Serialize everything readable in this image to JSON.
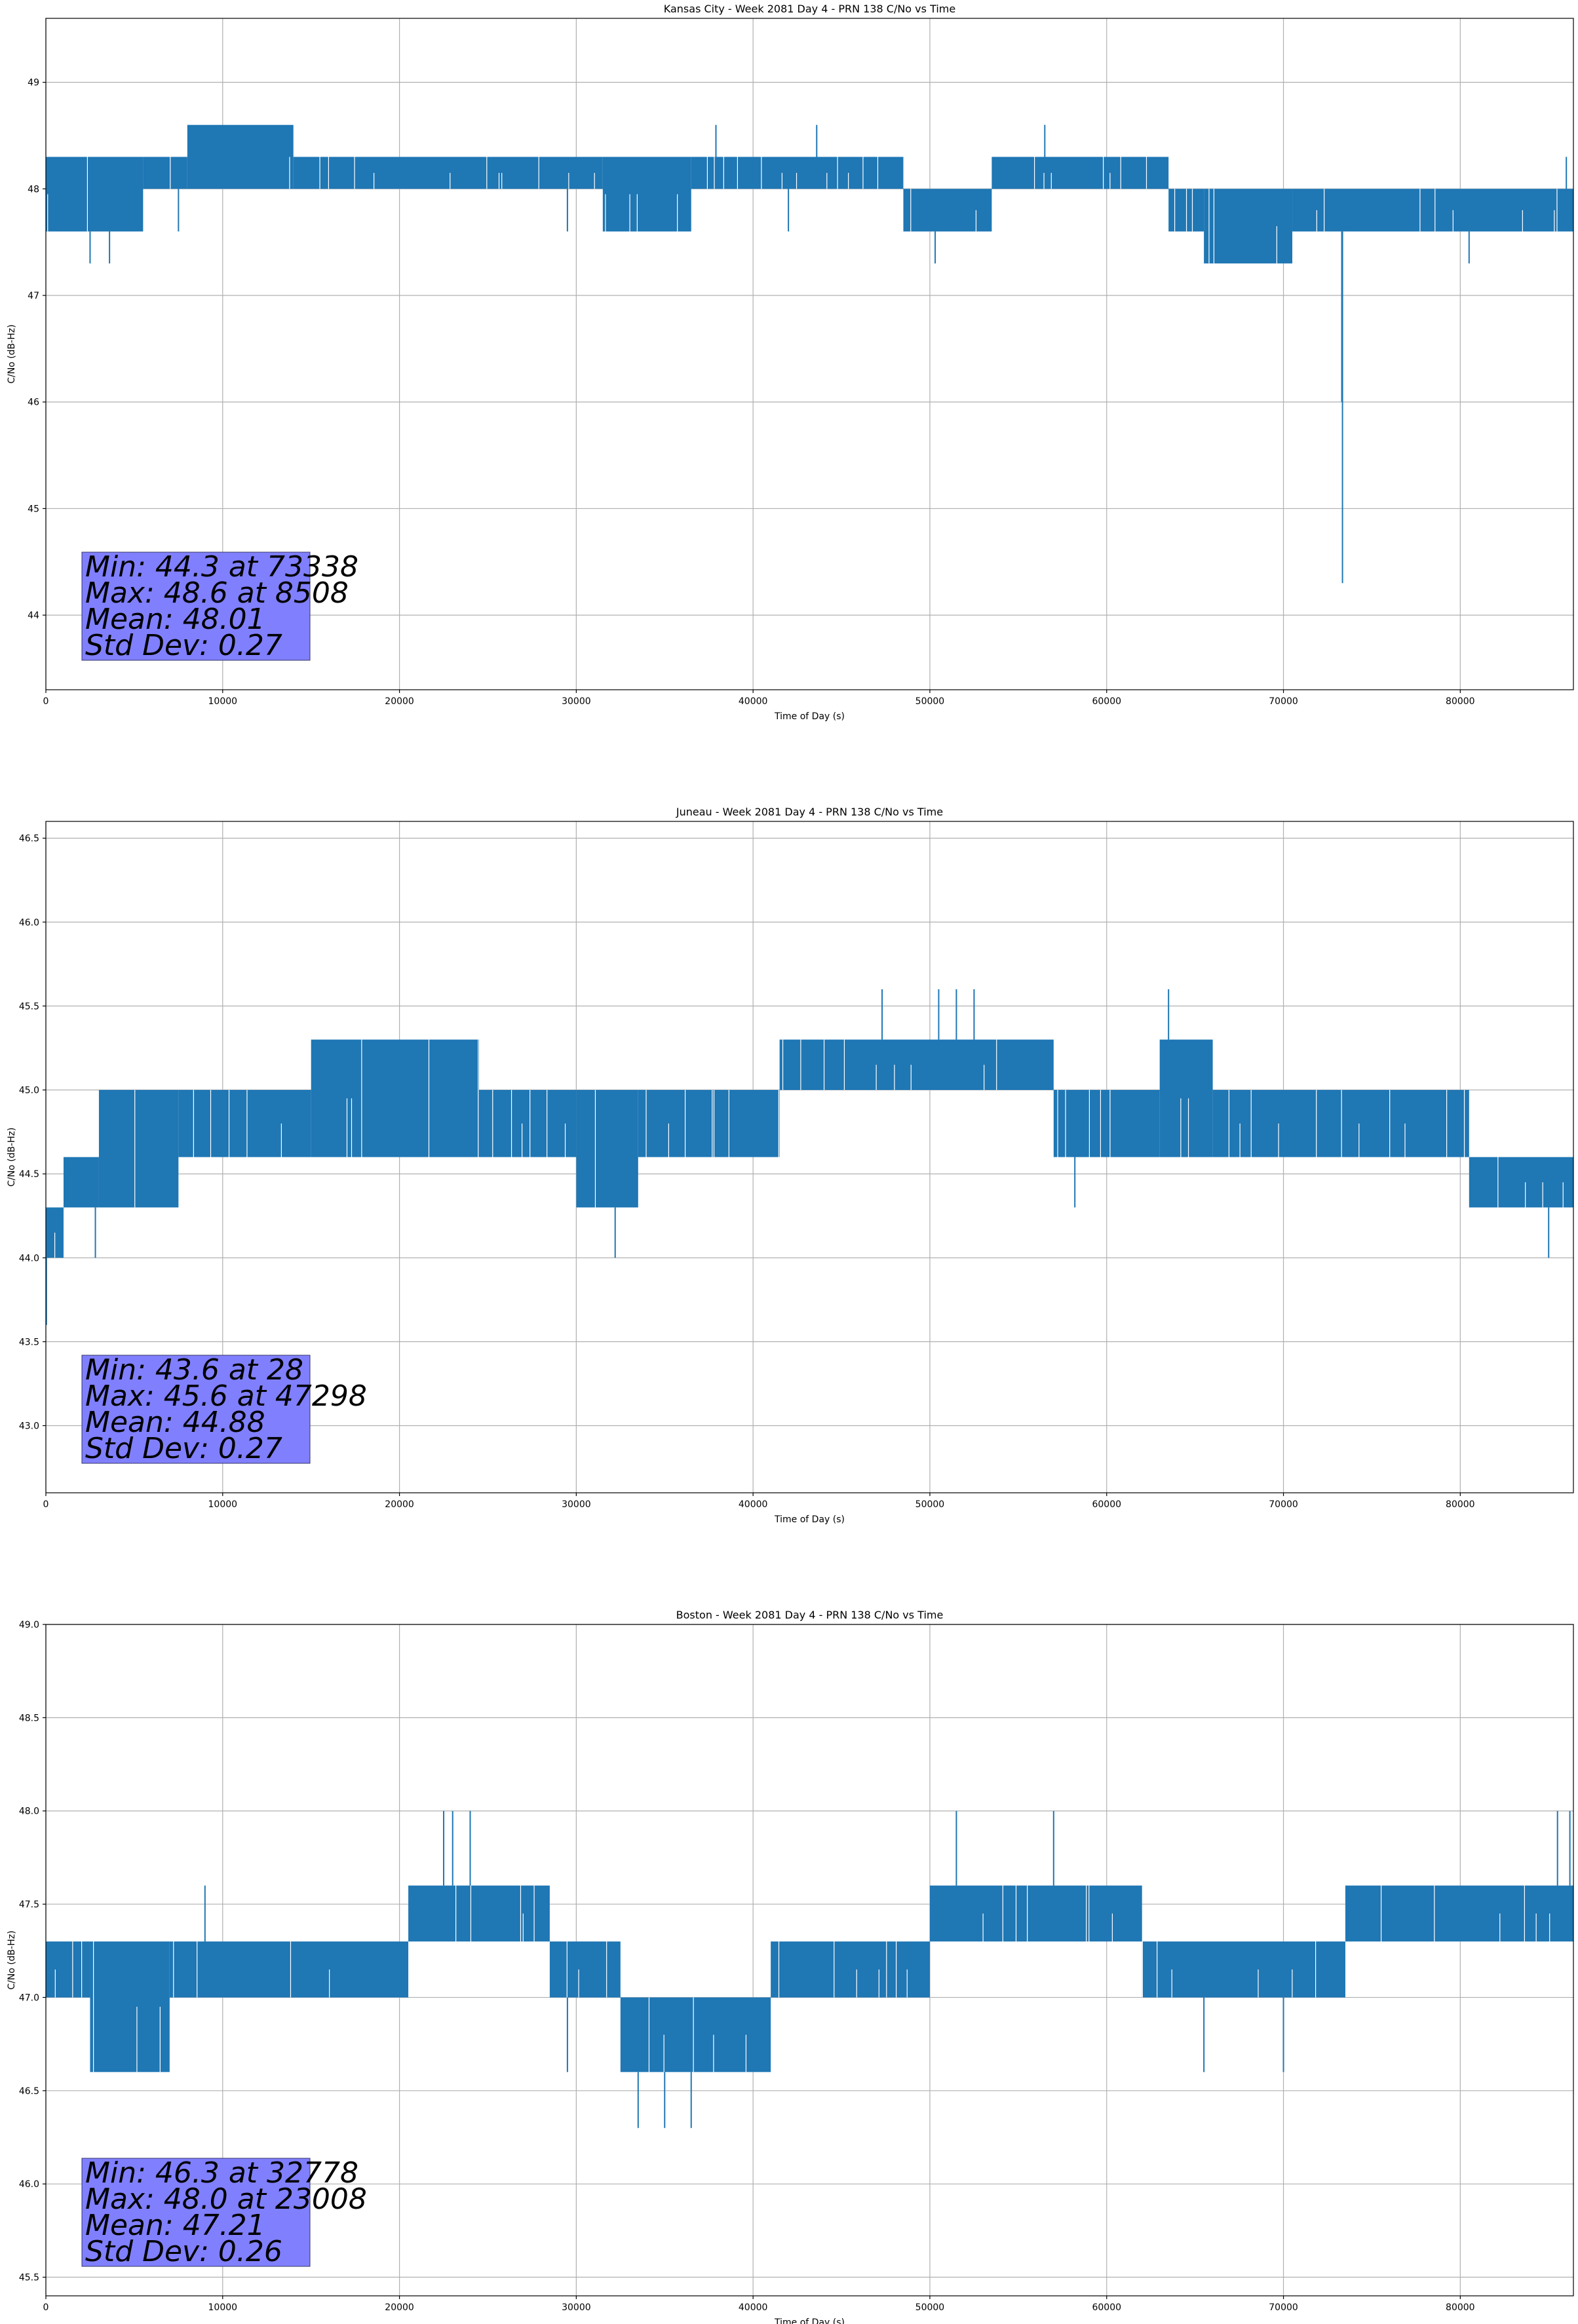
{
  "chart_data": [
    {
      "type": "line",
      "title": "Kansas City - Week 2081 Day 4 - PRN 138 C/No vs Time",
      "xlabel": "Time of Day (s)",
      "ylabel": "C/No (dB-Hz)",
      "xlim": [
        0,
        86400
      ],
      "ylim": [
        43.3,
        49.6
      ],
      "xticks": [
        0,
        10000,
        20000,
        30000,
        40000,
        50000,
        60000,
        70000,
        80000
      ],
      "yticks": [
        "44",
        "45",
        "46",
        "47",
        "48",
        "49"
      ],
      "grid": true,
      "series": [
        {
          "color": "#1f77b4",
          "band": [
            {
              "x": [
                0,
                5500
              ],
              "low": 47.6,
              "high": 48.3
            },
            {
              "x": [
                5500,
                8000
              ],
              "low": 48.0,
              "high": 48.3
            },
            {
              "x": [
                8000,
                14000
              ],
              "low": 48.0,
              "high": 48.6
            },
            {
              "x": [
                14000,
                31500
              ],
              "low": 48.0,
              "high": 48.3
            },
            {
              "x": [
                31500,
                36500
              ],
              "low": 47.6,
              "high": 48.3
            },
            {
              "x": [
                36500,
                48500
              ],
              "low": 48.0,
              "high": 48.3
            },
            {
              "x": [
                48500,
                53500
              ],
              "low": 47.6,
              "high": 48.0
            },
            {
              "x": [
                53500,
                63500
              ],
              "low": 48.0,
              "high": 48.3
            },
            {
              "x": [
                63500,
                65500
              ],
              "low": 47.6,
              "high": 48.0
            },
            {
              "x": [
                65500,
                70500
              ],
              "low": 47.3,
              "high": 48.0
            },
            {
              "x": [
                70500,
                86400
              ],
              "low": 47.6,
              "high": 48.0
            }
          ],
          "spikes": [
            [
              2500,
              47.3
            ],
            [
              3600,
              47.3
            ],
            [
              7500,
              47.6
            ],
            [
              29500,
              47.6
            ],
            [
              37900,
              48.6
            ],
            [
              42000,
              47.6
            ],
            [
              43600,
              48.6
            ],
            [
              50300,
              47.3
            ],
            [
              56500,
              48.6
            ],
            [
              73338,
              44.3
            ],
            [
              73300,
              46.0
            ],
            [
              80500,
              47.3
            ],
            [
              86000,
              48.3
            ]
          ]
        }
      ],
      "stats": [
        "Min: 44.3 at 73338",
        "Max: 48.6 at 8508",
        "Mean: 48.01",
        "Std Dev: 0.27"
      ]
    },
    {
      "type": "line",
      "title": "Juneau - Week 2081 Day 4 - PRN 138 C/No vs Time",
      "xlabel": "Time of Day (s)",
      "ylabel": "C/No (dB-Hz)",
      "xlim": [
        0,
        86400
      ],
      "ylim": [
        42.6,
        46.6
      ],
      "xticks": [
        0,
        10000,
        20000,
        30000,
        40000,
        50000,
        60000,
        70000,
        80000
      ],
      "yticks": [
        "43.0",
        "43.5",
        "44.0",
        "44.5",
        "45.0",
        "45.5",
        "46.0",
        "46.5"
      ],
      "grid": true,
      "series": [
        {
          "color": "#1f77b4",
          "band": [
            {
              "x": [
                0,
                1000
              ],
              "low": 44.0,
              "high": 44.3
            },
            {
              "x": [
                1000,
                3000
              ],
              "low": 44.3,
              "high": 44.6
            },
            {
              "x": [
                3000,
                7500
              ],
              "low": 44.3,
              "high": 45.0
            },
            {
              "x": [
                7500,
                15000
              ],
              "low": 44.6,
              "high": 45.0
            },
            {
              "x": [
                15000,
                24500
              ],
              "low": 44.6,
              "high": 45.3
            },
            {
              "x": [
                24500,
                30000
              ],
              "low": 44.6,
              "high": 45.0
            },
            {
              "x": [
                30000,
                33500
              ],
              "low": 44.3,
              "high": 45.0
            },
            {
              "x": [
                33500,
                41500
              ],
              "low": 44.6,
              "high": 45.0
            },
            {
              "x": [
                41500,
                57000
              ],
              "low": 45.0,
              "high": 45.3
            },
            {
              "x": [
                57000,
                63000
              ],
              "low": 44.6,
              "high": 45.0
            },
            {
              "x": [
                63000,
                66000
              ],
              "low": 44.6,
              "high": 45.3
            },
            {
              "x": [
                66000,
                80500
              ],
              "low": 44.6,
              "high": 45.0
            },
            {
              "x": [
                80500,
                86400
              ],
              "low": 44.3,
              "high": 44.6
            }
          ],
          "spikes": [
            [
              28,
              43.6
            ],
            [
              2800,
              44.0
            ],
            [
              32200,
              44.0
            ],
            [
              47298,
              45.6
            ],
            [
              50500,
              45.6
            ],
            [
              51500,
              45.6
            ],
            [
              52500,
              45.6
            ],
            [
              58200,
              44.3
            ],
            [
              63500,
              45.6
            ],
            [
              85000,
              44.0
            ]
          ]
        }
      ],
      "stats": [
        "Min: 43.6 at 28",
        "Max: 45.6 at 47298",
        "Mean: 44.88",
        "Std Dev: 0.27"
      ]
    },
    {
      "type": "line",
      "title": "Boston - Week 2081 Day 4 - PRN 138 C/No vs Time",
      "xlabel": "Time of Day (s)",
      "ylabel": "C/No (dB-Hz)",
      "xlim": [
        0,
        86400
      ],
      "ylim": [
        45.4,
        49.0
      ],
      "xticks": [
        0,
        10000,
        20000,
        30000,
        40000,
        50000,
        60000,
        70000,
        80000
      ],
      "yticks": [
        "45.5",
        "46.0",
        "46.5",
        "47.0",
        "47.5",
        "48.0",
        "48.5",
        "49.0"
      ],
      "grid": true,
      "series": [
        {
          "color": "#1f77b4",
          "band": [
            {
              "x": [
                0,
                2500
              ],
              "low": 47.0,
              "high": 47.3
            },
            {
              "x": [
                2500,
                7000
              ],
              "low": 46.6,
              "high": 47.3
            },
            {
              "x": [
                7000,
                20500
              ],
              "low": 47.0,
              "high": 47.3
            },
            {
              "x": [
                20500,
                28500
              ],
              "low": 47.3,
              "high": 47.6
            },
            {
              "x": [
                28500,
                32500
              ],
              "low": 47.0,
              "high": 47.3
            },
            {
              "x": [
                32500,
                41000
              ],
              "low": 46.6,
              "high": 47.0
            },
            {
              "x": [
                41000,
                50000
              ],
              "low": 47.0,
              "high": 47.3
            },
            {
              "x": [
                50000,
                62000
              ],
              "low": 47.3,
              "high": 47.6
            },
            {
              "x": [
                62000,
                73500
              ],
              "low": 47.0,
              "high": 47.3
            },
            {
              "x": [
                73500,
                86400
              ],
              "low": 47.3,
              "high": 47.6
            }
          ],
          "spikes": [
            [
              9000,
              47.6
            ],
            [
              22500,
              48.0
            ],
            [
              23008,
              48.0
            ],
            [
              24000,
              48.0
            ],
            [
              29500,
              46.6
            ],
            [
              33500,
              46.3
            ],
            [
              35000,
              46.3
            ],
            [
              36500,
              46.3
            ],
            [
              51500,
              48.0
            ],
            [
              57000,
              48.0
            ],
            [
              65500,
              46.6
            ],
            [
              70000,
              46.6
            ],
            [
              85500,
              48.0
            ],
            [
              86200,
              48.0
            ]
          ]
        }
      ],
      "stats": [
        "Min: 46.3 at 32778",
        "Max: 48.0 at 23008",
        "Mean: 47.21",
        "Std Dev: 0.26"
      ]
    }
  ]
}
